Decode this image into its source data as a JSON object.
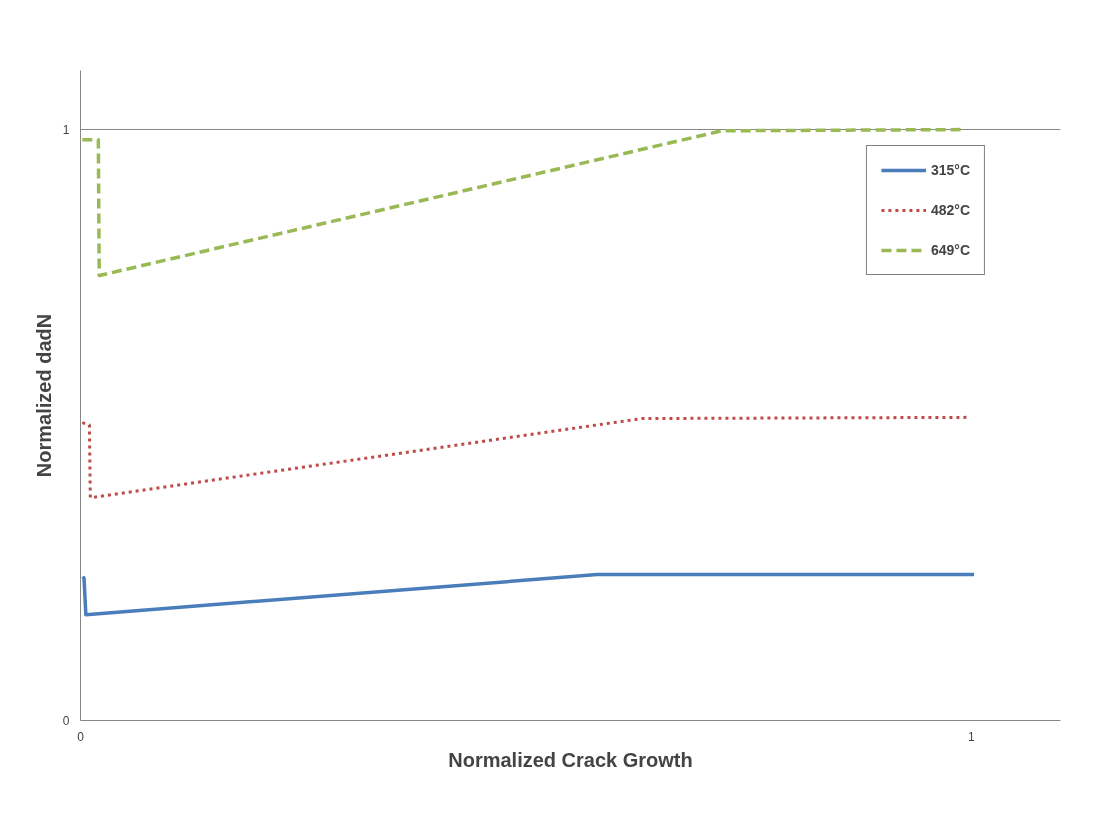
{
  "chart_data": {
    "type": "line",
    "xlabel": "Normalized Crack Growth",
    "ylabel": "Normalized dadN",
    "xlim": [
      0,
      1.1
    ],
    "ylim": [
      0,
      1.1
    ],
    "xticks": [
      0,
      1
    ],
    "yticks": [
      0,
      1
    ],
    "grid": "y",
    "legend": "top right",
    "marker": "none",
    "series": [
      {
        "name": "315°C",
        "color": "#4a7ebb",
        "line_style": "solid",
        "x": [
          0.003,
          0.004,
          0.006,
          0.58,
          1.003
        ],
        "values": [
          0.244,
          0.24,
          0.179,
          0.247,
          0.247
        ]
      },
      {
        "name": "482°C",
        "color": "#be4b48",
        "line_style": "dotted",
        "x": [
          0.002,
          0.01,
          0.011,
          0.63,
          0.995
        ],
        "values": [
          0.504,
          0.5,
          0.377,
          0.511,
          0.513
        ]
      },
      {
        "name": "649°C",
        "color": "#98b954",
        "line_style": "dashed",
        "x": [
          0.002,
          0.02,
          0.021,
          0.72,
          0.99
        ],
        "values": [
          0.983,
          0.983,
          0.753,
          0.998,
          1.0
        ]
      }
    ]
  }
}
